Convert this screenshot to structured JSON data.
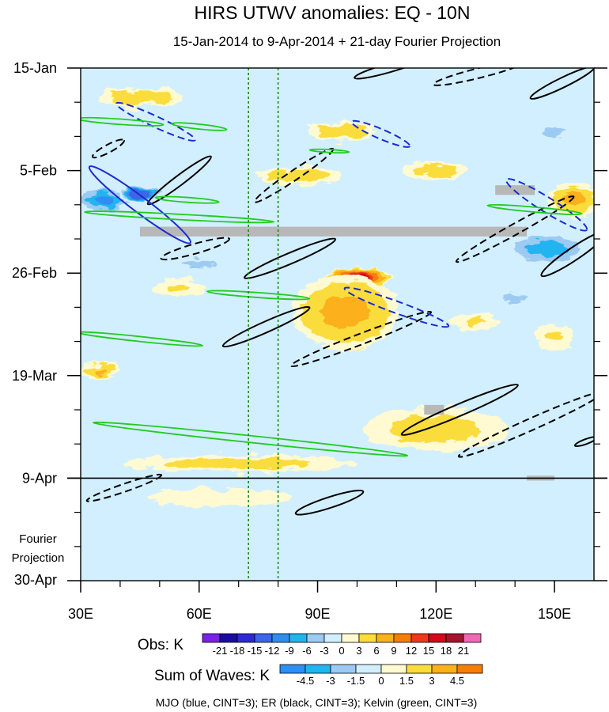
{
  "chart_data": {
    "type": "heatmap",
    "title": "HIRS UTWV anomalies: EQ - 10N",
    "subtitle": "15-Jan-2014 to 9-Apr-2014 + 21-day Fourier Projection",
    "x_axis": {
      "range": [
        30,
        160
      ],
      "ticks": [
        30,
        60,
        90,
        120,
        150
      ],
      "tick_labels": [
        "30E",
        "60E",
        "90E",
        "120E",
        "150E"
      ]
    },
    "y_axis": {
      "range_days": [
        0,
        105
      ],
      "tick_days": [
        0,
        21,
        42,
        63,
        84,
        105
      ],
      "tick_labels": [
        "15-Jan",
        "5-Feb",
        "26-Feb",
        "19-Mar",
        "9-Apr",
        "30-Apr"
      ],
      "minor_tick_days": [
        7,
        14,
        28,
        35,
        49,
        56,
        70,
        77,
        91,
        98
      ]
    },
    "reference_lines": {
      "obs_end_day": 84,
      "dashed_meridians": [
        72.5,
        80
      ]
    },
    "projection_label": [
      "Fourier",
      "Projection"
    ],
    "grid": false,
    "anomaly_blobs": [
      {
        "lon": 100,
        "day": 43,
        "rx": 9,
        "ry": 2.5,
        "value": 16
      },
      {
        "lon": 99,
        "day": 55,
        "rx": 6,
        "ry": 3,
        "value": 16
      },
      {
        "lon": 97,
        "day": 50,
        "rx": 16,
        "ry": 9,
        "value": 7
      },
      {
        "lon": 85,
        "day": 22,
        "rx": 14,
        "ry": 2.5,
        "value": 5
      },
      {
        "lon": 96,
        "day": 13,
        "rx": 11,
        "ry": 2.5,
        "value": 5
      },
      {
        "lon": 45,
        "day": 6,
        "rx": 14,
        "ry": 2.5,
        "value": 5
      },
      {
        "lon": 120,
        "day": 21,
        "rx": 12,
        "ry": 2.5,
        "value": 4
      },
      {
        "lon": 155,
        "day": 27,
        "rx": 8,
        "ry": 4,
        "value": 7
      },
      {
        "lon": 35,
        "day": 62,
        "rx": 6,
        "ry": 2,
        "value": 6
      },
      {
        "lon": 120,
        "day": 74,
        "rx": 25,
        "ry": 6,
        "value": 4
      },
      {
        "lon": 70,
        "day": 81,
        "rx": 40,
        "ry": 2.5,
        "value": 4
      },
      {
        "lon": 65,
        "day": 88,
        "rx": 40,
        "ry": 4,
        "value": 2
      },
      {
        "lon": 130,
        "day": 52,
        "rx": 10,
        "ry": 3,
        "value": 3
      },
      {
        "lon": 55,
        "day": 45,
        "rx": 10,
        "ry": 3,
        "value": 3
      },
      {
        "lon": 150,
        "day": 55,
        "rx": 8,
        "ry": 4,
        "value": 3
      },
      {
        "lon": 36,
        "day": 27,
        "rx": 9,
        "ry": 3,
        "value": -11
      },
      {
        "lon": 45,
        "day": 26,
        "rx": 6,
        "ry": 2,
        "value": -16
      },
      {
        "lon": 148,
        "day": 37,
        "rx": 13,
        "ry": 4,
        "value": -9
      },
      {
        "lon": 60,
        "day": 40,
        "rx": 12,
        "ry": 2.5,
        "value": -5
      },
      {
        "lon": 140,
        "day": 47,
        "rx": 9,
        "ry": 2.5,
        "value": -5
      },
      {
        "lon": 57,
        "day": 66,
        "rx": 12,
        "ry": 2.5,
        "value": -4
      },
      {
        "lon": 150,
        "day": 13,
        "rx": 8,
        "ry": 3,
        "value": -5
      },
      {
        "lon": 135,
        "day": 63,
        "rx": 9,
        "ry": 3,
        "value": -4
      },
      {
        "lon": 140,
        "day": 79,
        "rx": 14,
        "ry": 3,
        "value": -3
      },
      {
        "lon": 110,
        "day": 32,
        "rx": 20,
        "ry": 2.5,
        "value": -4
      },
      {
        "lon": 75,
        "day": 10,
        "rx": 12,
        "ry": 2,
        "value": -3
      },
      {
        "lon": 70,
        "day": 96,
        "rx": 60,
        "ry": 10,
        "value": -1.5
      },
      {
        "lon": 52,
        "day": 2,
        "rx": 6,
        "ry": 2,
        "value": -4
      },
      {
        "lon": 115,
        "day": 58,
        "rx": 6,
        "ry": 2,
        "value": -3
      }
    ],
    "missing_data": [
      {
        "lon_from": 45,
        "lon_to": 143,
        "day_from": 32.5,
        "day_to": 34.5
      },
      {
        "lon_from": 135,
        "lon_to": 145,
        "day_from": 24,
        "day_to": 26
      },
      {
        "lon_from": 117,
        "lon_to": 122,
        "day_from": 69,
        "day_to": 71
      },
      {
        "lon_from": 143,
        "lon_to": 150,
        "day_from": 83.5,
        "day_to": 84.5
      }
    ],
    "wave_contours": [
      {
        "wave": "ER",
        "sign": "positive",
        "lon": 108,
        "day": 0,
        "rx": 9,
        "ry": 0.9,
        "angle": -16
      },
      {
        "wave": "ER",
        "sign": "positive",
        "lon": 152,
        "day": 3,
        "rx": 9,
        "ry": 1.0,
        "angle": -26
      },
      {
        "wave": "ER",
        "sign": "negative",
        "lon": 131,
        "day": 1,
        "rx": 12,
        "ry": 1.0,
        "angle": -14
      },
      {
        "wave": "ER",
        "sign": "negative",
        "lon": 37,
        "day": 16.5,
        "rx": 4.5,
        "ry": 0.8,
        "angle": -28
      },
      {
        "wave": "ER",
        "sign": "positive",
        "lon": 55,
        "day": 23,
        "rx": 10,
        "ry": 1.0,
        "angle": -37
      },
      {
        "wave": "ER",
        "sign": "negative",
        "lon": 84,
        "day": 22,
        "rx": 12,
        "ry": 1.0,
        "angle": -34
      },
      {
        "wave": "ER",
        "sign": "negative",
        "lon": 140,
        "day": 33,
        "rx": 17,
        "ry": 1.1,
        "angle": -29
      },
      {
        "wave": "ER",
        "sign": "positive",
        "lon": 155,
        "day": 38,
        "rx": 10,
        "ry": 1.3,
        "angle": -34
      },
      {
        "wave": "ER",
        "sign": "negative",
        "lon": 59,
        "day": 37,
        "rx": 9,
        "ry": 1.0,
        "angle": -16
      },
      {
        "wave": "ER",
        "sign": "positive",
        "lon": 83,
        "day": 39,
        "rx": 12.5,
        "ry": 1.1,
        "angle": -23
      },
      {
        "wave": "ER",
        "sign": "positive",
        "lon": 77,
        "day": 53,
        "rx": 12,
        "ry": 1.1,
        "angle": -24
      },
      {
        "wave": "ER",
        "sign": "negative",
        "lon": 101,
        "day": 55.5,
        "rx": 19,
        "ry": 1.1,
        "angle": -21
      },
      {
        "wave": "ER",
        "sign": "positive",
        "lon": 126,
        "day": 70,
        "rx": 16,
        "ry": 1.2,
        "angle": -23
      },
      {
        "wave": "ER",
        "sign": "negative",
        "lon": 144,
        "day": 73,
        "rx": 20,
        "ry": 1.2,
        "angle": -24
      },
      {
        "wave": "ER",
        "sign": "positive",
        "lon": 158,
        "day": 76.5,
        "rx": 3,
        "ry": 0.5,
        "angle": -20
      },
      {
        "wave": "ER",
        "sign": "negative",
        "lon": 41,
        "day": 86,
        "rx": 10,
        "ry": 0.8,
        "angle": -19
      },
      {
        "wave": "ER",
        "sign": "positive",
        "lon": 93,
        "day": 89,
        "rx": 9,
        "ry": 1.1,
        "angle": -18
      },
      {
        "wave": "MJO",
        "sign": "negative",
        "lon": 49,
        "day": 11,
        "rx": 11,
        "ry": 1.1,
        "angle": 25
      },
      {
        "wave": "MJO",
        "sign": "negative",
        "lon": 106,
        "day": 13.5,
        "rx": 8,
        "ry": 1.0,
        "angle": 23
      },
      {
        "wave": "MJO",
        "sign": "positive",
        "lon": 45,
        "day": 28,
        "rx": 16,
        "ry": 1.6,
        "angle": 37
      },
      {
        "wave": "MJO",
        "sign": "negative",
        "lon": 148,
        "day": 28,
        "rx": 12,
        "ry": 1.5,
        "angle": 32
      },
      {
        "wave": "MJO",
        "sign": "negative",
        "lon": 110,
        "day": 49,
        "rx": 14,
        "ry": 1.2,
        "angle": 20
      },
      {
        "wave": "Kelvin",
        "sign": "positive",
        "lon": 40,
        "day": 11,
        "rx": 11,
        "ry": 0.55,
        "angle": 4
      },
      {
        "wave": "Kelvin",
        "sign": "positive",
        "lon": 60,
        "day": 12,
        "rx": 7,
        "ry": 0.5,
        "angle": 6
      },
      {
        "wave": "Kelvin",
        "sign": "positive",
        "lon": 55,
        "day": 30.5,
        "rx": 24,
        "ry": 0.55,
        "angle": 3
      },
      {
        "wave": "Kelvin",
        "sign": "positive",
        "lon": 57,
        "day": 27,
        "rx": 8,
        "ry": 0.5,
        "angle": 4
      },
      {
        "wave": "Kelvin",
        "sign": "positive",
        "lon": 75,
        "day": 46.5,
        "rx": 13,
        "ry": 0.5,
        "angle": 4
      },
      {
        "wave": "Kelvin",
        "sign": "positive",
        "lon": 45,
        "day": 55.5,
        "rx": 16,
        "ry": 0.5,
        "angle": 6
      },
      {
        "wave": "Kelvin",
        "sign": "positive",
        "lon": 73,
        "day": 76,
        "rx": 40,
        "ry": 0.7,
        "angle": 6
      },
      {
        "wave": "Kelvin",
        "sign": "positive",
        "lon": 93,
        "day": 17,
        "rx": 5,
        "ry": 0.3,
        "angle": 3
      },
      {
        "wave": "Kelvin",
        "sign": "positive",
        "lon": 145,
        "day": 29,
        "rx": 12,
        "ry": 0.5,
        "angle": 5
      }
    ],
    "wave_colors": {
      "MJO": "#1c2bd0",
      "ER": "#000000",
      "Kelvin": "#22cc22"
    },
    "obs_colorbar": {
      "label": "Obs: K",
      "levels": [
        -21,
        -18,
        -15,
        -12,
        -9,
        -6,
        -3,
        0,
        3,
        6,
        9,
        12,
        15,
        18,
        21
      ],
      "colors": [
        "#7a22e6",
        "#1c0d9e",
        "#2d2ad4",
        "#3b66e6",
        "#2e8ef2",
        "#22b4f0",
        "#9ccaf2",
        "#d2efff",
        "#fffad2",
        "#fbdc3c",
        "#fbb01e",
        "#f77d0a",
        "#ee3a17",
        "#d20a1c",
        "#a5142c",
        "#f266b4"
      ]
    },
    "waves_colorbar": {
      "label": "Sum of Waves: K",
      "tick_labels": [
        "-4.5",
        "-3",
        "-1.5",
        "0",
        "1.5",
        "3",
        "4.5"
      ],
      "colors": [
        "#2e8ef2",
        "#22b4f0",
        "#9ccaf2",
        "#d2efff",
        "#fffad2",
        "#fbdc3c",
        "#fbb01e",
        "#f77d0a"
      ]
    },
    "footnote": "MJO (blue, CINT=3); ER (black, CINT=3); Kelvin (green, CINT=3)"
  }
}
